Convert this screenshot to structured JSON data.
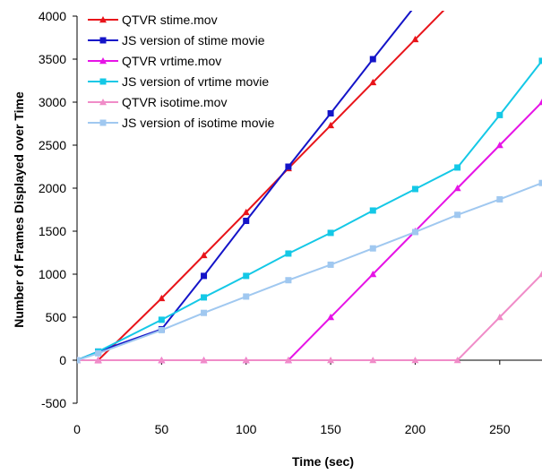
{
  "chart_data": {
    "type": "line",
    "title": "",
    "xlabel": "Time (sec)",
    "ylabel": "Number of Frames Displayed over Time",
    "xlim": [
      0,
      275
    ],
    "ylim": [
      -500,
      4000
    ],
    "xticks": [
      0,
      50,
      100,
      150,
      200,
      250
    ],
    "yticks": [
      -500,
      0,
      500,
      1000,
      1500,
      2000,
      2500,
      3000,
      3500,
      4000
    ],
    "grid": false,
    "legend_position": "top-left",
    "series": [
      {
        "name": "QTVR stime.mov",
        "color": "#e8141a",
        "marker": "triangle",
        "x": [
          0,
          12.5,
          50,
          75,
          100,
          125,
          150,
          175,
          200,
          225
        ],
        "y": [
          0,
          0,
          720,
          1220,
          1720,
          2230,
          2730,
          3230,
          3730,
          4230
        ]
      },
      {
        "name": "JS version of stime movie",
        "color": "#1414c8",
        "marker": "square",
        "x": [
          0,
          12.5,
          50,
          75,
          100,
          125,
          150,
          175,
          200
        ],
        "y": [
          0,
          100,
          360,
          980,
          1620,
          2250,
          2870,
          3500,
          4120
        ]
      },
      {
        "name": "QTVR vrtime.mov",
        "color": "#e614e6",
        "marker": "triangle",
        "x": [
          0,
          12.5,
          50,
          75,
          100,
          125,
          150,
          175,
          200,
          225,
          250,
          275
        ],
        "y": [
          0,
          0,
          0,
          0,
          0,
          0,
          500,
          1000,
          1500,
          2000,
          2500,
          3000
        ]
      },
      {
        "name": "JS version of vrtime movie",
        "color": "#14c8e6",
        "marker": "square",
        "x": [
          0,
          12.5,
          50,
          75,
          100,
          125,
          150,
          175,
          200,
          225,
          250,
          275
        ],
        "y": [
          0,
          100,
          470,
          730,
          980,
          1240,
          1480,
          1740,
          1990,
          2240,
          2850,
          3480
        ]
      },
      {
        "name": "QTVR isotime.mov",
        "color": "#f08cc8",
        "marker": "triangle",
        "x": [
          0,
          12.5,
          50,
          75,
          100,
          125,
          150,
          175,
          200,
          225,
          250,
          275
        ],
        "y": [
          0,
          0,
          0,
          0,
          0,
          0,
          0,
          0,
          0,
          0,
          500,
          1000
        ]
      },
      {
        "name": "JS version of isotime movie",
        "color": "#a0c8f0",
        "marker": "square",
        "x": [
          0,
          12.5,
          50,
          75,
          100,
          125,
          150,
          175,
          200,
          225,
          250,
          275
        ],
        "y": [
          0,
          80,
          350,
          550,
          740,
          930,
          1110,
          1300,
          1490,
          1690,
          1870,
          2060
        ]
      }
    ]
  }
}
